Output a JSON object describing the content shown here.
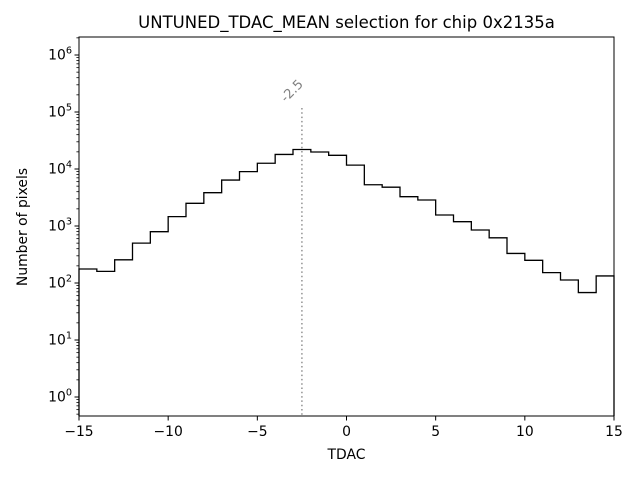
{
  "chart_data": {
    "type": "bar",
    "subtype": "step-histogram-outline",
    "title": "UNTUNED_TDAC_MEAN selection for chip 0x2135a",
    "xlabel": "TDAC",
    "ylabel": "Number of pixels",
    "yscale": "log",
    "grid": false,
    "legend": "none",
    "xlim": [
      -15,
      15
    ],
    "ylim_log10_exponents": [
      -0.33,
      6.33
    ],
    "line_color": "#000000",
    "x_ticks": [
      {
        "value": -15,
        "label": "−15"
      },
      {
        "value": -10,
        "label": "−10"
      },
      {
        "value": -5,
        "label": "−5"
      },
      {
        "value": 0,
        "label": "0"
      },
      {
        "value": 5,
        "label": "5"
      },
      {
        "value": 10,
        "label": "10"
      },
      {
        "value": 15,
        "label": "15"
      }
    ],
    "y_tick_base": "10",
    "y_tick_exponents": [
      0,
      1,
      2,
      3,
      4,
      5,
      6
    ],
    "bin_edges": [
      -15,
      -14,
      -13,
      -12,
      -11,
      -10,
      -9,
      -8,
      -7,
      -6,
      -5,
      -4,
      -3,
      -2,
      -1,
      0,
      1,
      2,
      3,
      4,
      5,
      6,
      7,
      8,
      9,
      10,
      11,
      12,
      13,
      14,
      15
    ],
    "counts": [
      176,
      160,
      255,
      500,
      795,
      1460,
      2500,
      3840,
      6400,
      9000,
      12600,
      18000,
      22000,
      19900,
      17400,
      11700,
      5300,
      4800,
      3270,
      2860,
      1560,
      1190,
      850,
      620,
      330,
      250,
      152,
      113,
      68,
      133
    ],
    "vline": {
      "x": -2.5,
      "label": "-2.5",
      "color": "#808080",
      "style": "dotted"
    }
  }
}
